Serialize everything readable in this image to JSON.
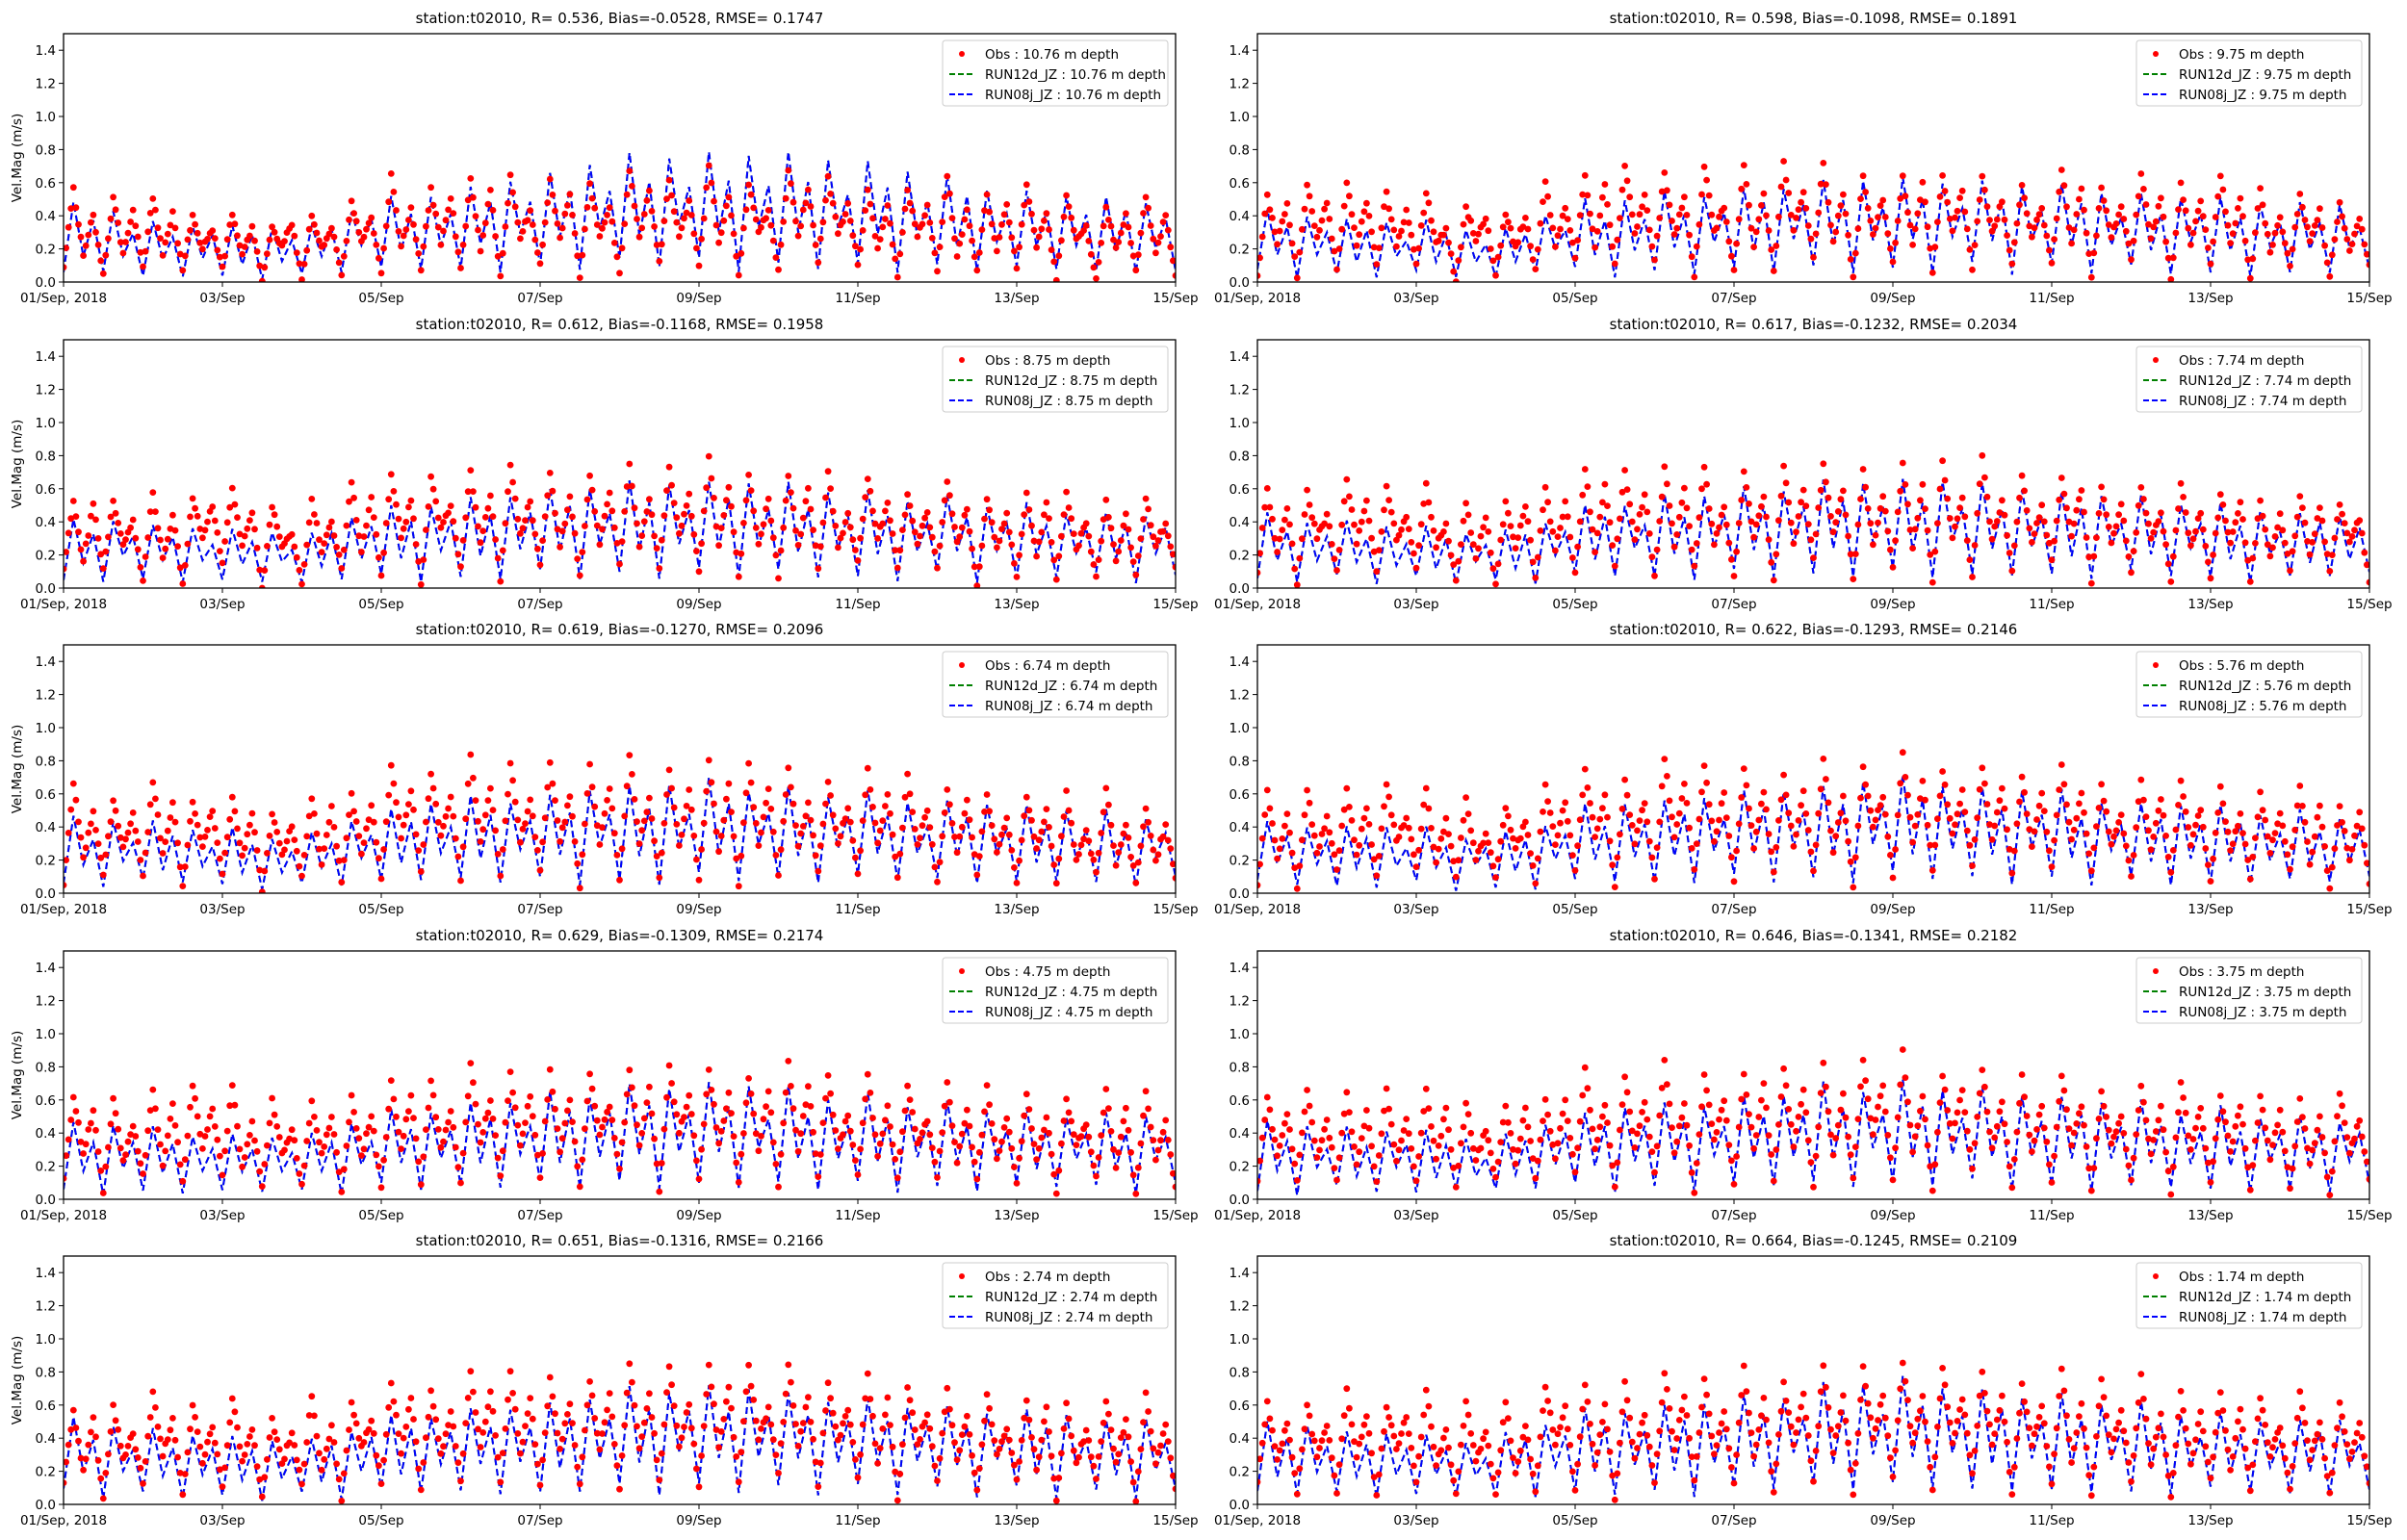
{
  "chart_data": {
    "type": "scatter",
    "layout": "5x2 grid",
    "xlabel": "",
    "ylabel": "Vel.Mag (m/s)",
    "ylim": [
      0,
      1.5
    ],
    "yticks": [
      "0.0",
      "0.2",
      "0.4",
      "0.6",
      "0.8",
      "1.0",
      "1.2",
      "1.4"
    ],
    "xlim_days": [
      0,
      14
    ],
    "xticks": [
      "01/Sep, 2018",
      "03/Sep",
      "05/Sep",
      "07/Sep",
      "09/Sep",
      "11/Sep",
      "13/Sep",
      "15/Sep"
    ],
    "sample_interval_hours": 3,
    "colors": {
      "obs": "#ff0000",
      "run12d": "#008000",
      "run08j": "#0000ff"
    },
    "legend_position": "upper right",
    "panel_pattern": [
      0.15,
      0.95,
      0.35,
      0.75,
      0.1,
      0.9,
      0.4,
      0.7
    ],
    "panels": [
      {
        "title": "station:t02010, R= 0.536, Bias=-0.0528, RMSE= 0.1747",
        "legend": [
          "Obs : 10.76 m depth",
          "RUN12d_JZ : 10.76 m depth",
          "RUN08j_JZ : 10.76 m depth"
        ],
        "show_ylabel": true,
        "obs_daily_amp": [
          0.6,
          0.55,
          0.48,
          0.4,
          0.62,
          0.68,
          0.66,
          0.72,
          0.7,
          0.68,
          0.65,
          0.62,
          0.58,
          0.52
        ],
        "model_daily_amp": [
          0.55,
          0.4,
          0.38,
          0.36,
          0.55,
          0.62,
          0.7,
          0.8,
          0.82,
          0.82,
          0.78,
          0.7,
          0.6,
          0.55
        ]
      },
      {
        "title": "station:t02010, R= 0.598, Bias=-0.1098, RMSE= 0.1891",
        "legend": [
          "Obs : 9.75 m depth",
          "RUN12d_JZ : 9.75 m depth",
          "RUN08j_JZ : 9.75 m depth"
        ],
        "show_ylabel": false,
        "obs_daily_amp": [
          0.6,
          0.62,
          0.55,
          0.45,
          0.72,
          0.75,
          0.72,
          0.78,
          0.74,
          0.72,
          0.7,
          0.66,
          0.62,
          0.58
        ],
        "model_daily_amp": [
          0.45,
          0.4,
          0.38,
          0.32,
          0.5,
          0.55,
          0.6,
          0.66,
          0.68,
          0.65,
          0.62,
          0.58,
          0.55,
          0.5
        ]
      },
      {
        "title": "station:t02010, R= 0.612, Bias=-0.1168, RMSE= 0.1958",
        "legend": [
          "Obs : 8.75 m depth",
          "RUN12d_JZ : 8.75 m depth",
          "RUN08j_JZ : 8.75 m depth"
        ],
        "show_ylabel": true,
        "obs_daily_amp": [
          0.6,
          0.65,
          0.62,
          0.5,
          0.76,
          0.8,
          0.75,
          0.8,
          0.78,
          0.78,
          0.72,
          0.68,
          0.64,
          0.6
        ],
        "model_daily_amp": [
          0.45,
          0.42,
          0.4,
          0.35,
          0.52,
          0.58,
          0.62,
          0.68,
          0.7,
          0.66,
          0.62,
          0.58,
          0.55,
          0.5
        ]
      },
      {
        "title": "station:t02010, R= 0.617, Bias=-0.1232, RMSE= 0.2034",
        "legend": [
          "Obs : 7.74 m depth",
          "RUN12d_JZ : 7.74 m depth",
          "RUN08j_JZ : 7.74 m depth"
        ],
        "show_ylabel": false,
        "obs_daily_amp": [
          0.62,
          0.66,
          0.64,
          0.52,
          0.78,
          0.82,
          0.78,
          0.82,
          0.8,
          0.8,
          0.75,
          0.7,
          0.66,
          0.62
        ],
        "model_daily_amp": [
          0.46,
          0.42,
          0.4,
          0.35,
          0.52,
          0.58,
          0.62,
          0.68,
          0.7,
          0.68,
          0.63,
          0.58,
          0.55,
          0.5
        ]
      },
      {
        "title": "station:t02010, R= 0.619, Bias=-0.1270, RMSE= 0.2096",
        "legend": [
          "Obs : 6.74 m depth",
          "RUN12d_JZ : 6.74 m depth",
          "RUN08j_JZ : 6.74 m depth"
        ],
        "show_ylabel": true,
        "obs_daily_amp": [
          0.64,
          0.68,
          0.66,
          0.55,
          0.8,
          0.84,
          0.8,
          0.84,
          0.82,
          0.82,
          0.76,
          0.72,
          0.68,
          0.62
        ],
        "model_daily_amp": [
          0.48,
          0.44,
          0.42,
          0.36,
          0.54,
          0.6,
          0.64,
          0.7,
          0.72,
          0.68,
          0.64,
          0.6,
          0.56,
          0.52
        ]
      },
      {
        "title": "station:t02010, R= 0.622, Bias=-0.1293, RMSE= 0.2146",
        "legend": [
          "Obs : 5.76 m depth",
          "RUN12d_JZ : 5.76 m depth",
          "RUN08j_JZ : 5.76 m depth"
        ],
        "show_ylabel": false,
        "obs_daily_amp": [
          0.65,
          0.7,
          0.68,
          0.56,
          0.8,
          0.84,
          0.82,
          0.86,
          0.86,
          0.84,
          0.78,
          0.74,
          0.7,
          0.64
        ],
        "model_daily_amp": [
          0.48,
          0.44,
          0.42,
          0.36,
          0.54,
          0.6,
          0.64,
          0.7,
          0.74,
          0.7,
          0.65,
          0.6,
          0.56,
          0.52
        ]
      },
      {
        "title": "station:t02010, R= 0.629, Bias=-0.1309, RMSE= 0.2174",
        "legend": [
          "Obs : 4.75 m depth",
          "RUN12d_JZ : 4.75 m depth",
          "RUN08j_JZ : 4.75 m depth"
        ],
        "show_ylabel": true,
        "obs_daily_amp": [
          0.66,
          0.72,
          0.7,
          0.58,
          0.8,
          0.85,
          0.84,
          0.88,
          0.88,
          0.85,
          0.8,
          0.75,
          0.7,
          0.66
        ],
        "model_daily_amp": [
          0.5,
          0.45,
          0.43,
          0.38,
          0.55,
          0.62,
          0.66,
          0.72,
          0.76,
          0.72,
          0.66,
          0.62,
          0.58,
          0.54
        ]
      },
      {
        "title": "station:t02010, R= 0.646, Bias=-0.1341, RMSE= 0.2182",
        "legend": [
          "Obs : 3.75 m depth",
          "RUN12d_JZ : 3.75 m depth",
          "RUN08j_JZ : 3.75 m depth"
        ],
        "show_ylabel": false,
        "obs_daily_amp": [
          0.66,
          0.72,
          0.7,
          0.6,
          0.8,
          0.84,
          0.84,
          0.88,
          0.9,
          0.86,
          0.8,
          0.76,
          0.72,
          0.68
        ],
        "model_daily_amp": [
          0.5,
          0.46,
          0.44,
          0.38,
          0.56,
          0.62,
          0.66,
          0.72,
          0.76,
          0.72,
          0.67,
          0.62,
          0.58,
          0.54
        ]
      },
      {
        "title": "station:t02010, R= 0.651, Bias=-0.1316, RMSE= 0.2166",
        "legend": [
          "Obs : 2.74 m depth",
          "RUN12d_JZ : 2.74 m depth",
          "RUN08j_JZ : 2.74 m depth"
        ],
        "show_ylabel": true,
        "obs_daily_amp": [
          0.64,
          0.7,
          0.7,
          0.6,
          0.8,
          0.84,
          0.86,
          0.9,
          0.9,
          0.88,
          0.82,
          0.76,
          0.72,
          0.7
        ],
        "model_daily_amp": [
          0.56,
          0.47,
          0.46,
          0.4,
          0.58,
          0.62,
          0.66,
          0.74,
          0.78,
          0.74,
          0.68,
          0.64,
          0.6,
          0.56
        ]
      },
      {
        "title": "station:t02010, R= 0.664, Bias=-0.1245, RMSE= 0.2109",
        "legend": [
          "Obs : 1.74 m depth",
          "RUN12d_JZ : 1.74 m depth",
          "RUN08j_JZ : 1.74 m depth"
        ],
        "show_ylabel": false,
        "obs_daily_amp": [
          0.64,
          0.7,
          0.7,
          0.62,
          0.8,
          0.84,
          0.86,
          0.9,
          0.92,
          0.9,
          0.84,
          0.78,
          0.74,
          0.7
        ],
        "model_daily_amp": [
          0.56,
          0.48,
          0.46,
          0.42,
          0.6,
          0.64,
          0.68,
          0.76,
          0.8,
          0.76,
          0.7,
          0.65,
          0.6,
          0.56
        ]
      }
    ]
  }
}
